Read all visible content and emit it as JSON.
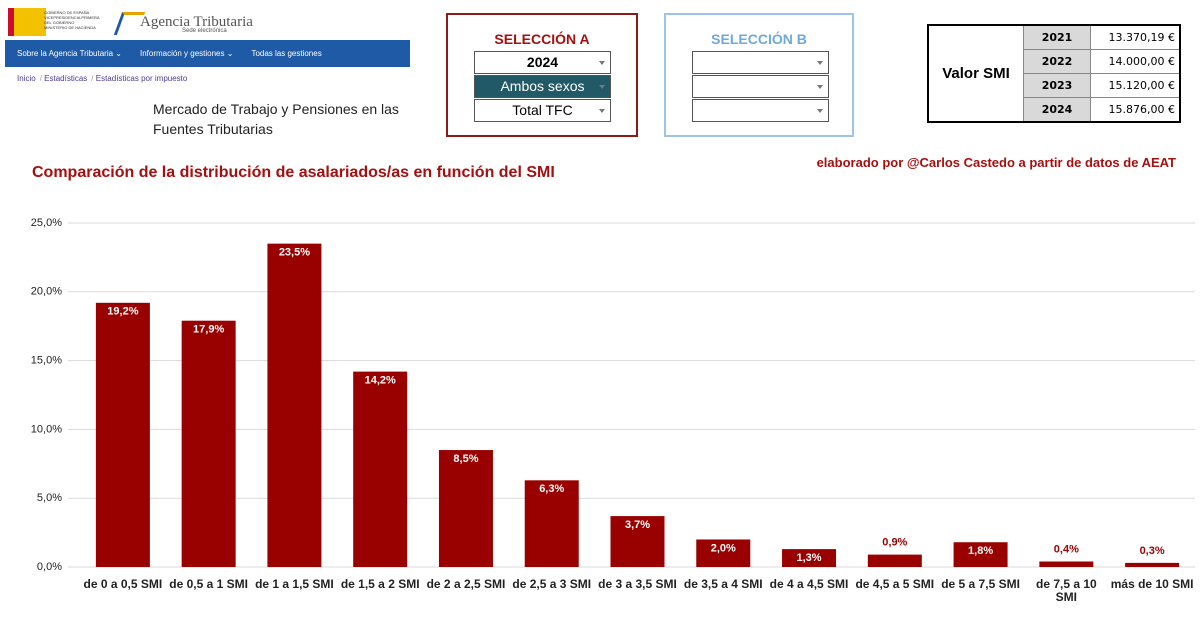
{
  "header": {
    "government": [
      "GOBIERNO DE ESPAÑA",
      "VICEPRESIDENCIA PRIMERA DEL GOBIERNO",
      "MINISTERIO DE HACIENDA"
    ],
    "agency": "Agencia Tributaria",
    "agency_subtitle": "Sede electrónica",
    "nav": [
      "Sobre la Agencia Tributaria",
      "Información y gestiones",
      "Todas las gestiones"
    ],
    "breadcrumb": [
      "Inicio",
      "Estadísticas",
      "Estadísticas por impuesto"
    ],
    "title": "Mercado de Trabajo y Pensiones en las Fuentes Tributarias"
  },
  "selection_a": {
    "title": "SELECCIÓN A",
    "options": [
      "2024",
      "Ambos sexos",
      "Total TFC"
    ]
  },
  "selection_b": {
    "title": "SELECCIÓN B"
  },
  "smi_table": {
    "label": "Valor SMI",
    "rows": [
      [
        "2021",
        "13.370,19 €"
      ],
      [
        "2022",
        "14.000,00 €"
      ],
      [
        "2023",
        "15.120,00 €"
      ],
      [
        "2024",
        "15.876,00 €"
      ]
    ]
  },
  "credit": "elaborado por @Carlos Castedo a partir de datos de AEAT",
  "chart_data": {
    "type": "bar",
    "title": "Comparación de la distribución de asalariados/as en función del SMI",
    "categories": [
      "de 0 a 0,5 SMI",
      "de 0,5 a 1 SMI",
      "de 1 a 1,5 SMI",
      "de 1,5 a 2 SMI",
      "de 2 a 2,5 SMI",
      "de 2,5 a 3 SMI",
      "de 3 a 3,5 SMI",
      "de 3,5 a 4 SMI",
      "de 4 a 4,5 SMI",
      "de 4,5 a 5 SMI",
      "de 5 a 7,5 SMI",
      "de 7,5 a 10 SMI",
      "más de 10 SMI"
    ],
    "values": [
      19.2,
      17.9,
      23.5,
      14.2,
      8.5,
      6.3,
      3.7,
      2.0,
      1.3,
      0.9,
      1.8,
      0.4,
      0.3
    ],
    "value_labels": [
      "19,2%",
      "17,9%",
      "23,5%",
      "14,2%",
      "8,5%",
      "6,3%",
      "3,7%",
      "2,0%",
      "1,3%",
      "0,9%",
      "1,8%",
      "0,4%",
      "0,3%"
    ],
    "color": "#990000",
    "ylim": [
      0,
      25
    ],
    "yticks": [
      {
        "value": 0,
        "label": "0,0%"
      },
      {
        "value": 5,
        "label": "5,0%"
      },
      {
        "value": 10,
        "label": "10,0%"
      },
      {
        "value": 15,
        "label": "15,0%"
      },
      {
        "value": 20,
        "label": "20,0%"
      },
      {
        "value": 25,
        "label": "25,0%"
      }
    ],
    "grid": true
  }
}
